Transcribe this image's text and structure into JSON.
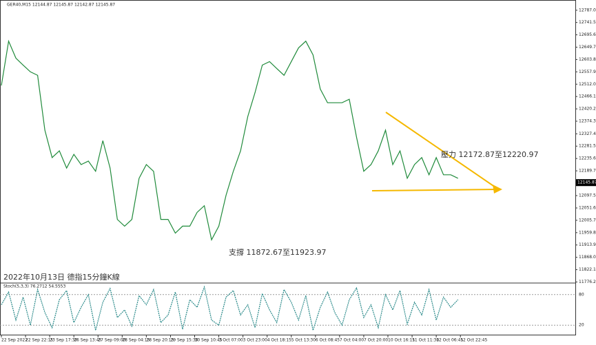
{
  "chart_data": {
    "type": "line",
    "title": "GER40,M15 12144.87 12145.87 12142.87 12145.87",
    "x": [
      0,
      3,
      6,
      9,
      12,
      15,
      18,
      21,
      24,
      27,
      30,
      33,
      36,
      39,
      42,
      45,
      48,
      51,
      54,
      57,
      60,
      63,
      66,
      69,
      72,
      75,
      78,
      81,
      84,
      87,
      90,
      93,
      96,
      99,
      102,
      105,
      108,
      111,
      114,
      117,
      120,
      123,
      126,
      129,
      132,
      135,
      138,
      141,
      144,
      147,
      150,
      153,
      156,
      159,
      162,
      165,
      168,
      171,
      174,
      177,
      180,
      183,
      186,
      189
    ],
    "values": [
      12507,
      12672,
      12609,
      12583,
      12558,
      12545,
      12341,
      12239,
      12264,
      12200,
      12251,
      12213,
      12226,
      12188,
      12302,
      12200,
      12009,
      11984,
      12009,
      12162,
      12213,
      12188,
      12009,
      12009,
      11958,
      11984,
      11984,
      12035,
      12060,
      11933,
      11984,
      12099,
      12188,
      12264,
      12392,
      12481,
      12583,
      12596,
      12570,
      12545,
      12596,
      12647,
      12672,
      12621,
      12494,
      12443,
      12443,
      12443,
      12456,
      12315,
      12188,
      12213,
      12264,
      12341,
      12213,
      12264,
      12162,
      12213,
      12239,
      12175,
      12239,
      12175,
      12175,
      12162
    ],
    "color": "#1f8a3a",
    "xlim": [
      0,
      237
    ],
    "xticks": [
      {
        "value": 0,
        "label": "22 Sep 2022"
      },
      {
        "value": 10,
        "label": "22 Sep 22:15"
      },
      {
        "value": 20,
        "label": "23 Sep 17:30"
      },
      {
        "value": 30,
        "label": "26 Sep 13:45"
      },
      {
        "value": 40,
        "label": "27 Sep 09:00"
      },
      {
        "value": 50,
        "label": "28 Sep 04:15"
      },
      {
        "value": 60,
        "label": "28 Sep 20:15"
      },
      {
        "value": 70,
        "label": "29 Sep 15:30"
      },
      {
        "value": 80,
        "label": "30 Sep 10:45"
      },
      {
        "value": 90,
        "label": "3 Oct 07:00"
      },
      {
        "value": 100,
        "label": "3 Oct 23:00"
      },
      {
        "value": 110,
        "label": "4 Oct 18:15"
      },
      {
        "value": 120,
        "label": "5 Oct 13:30"
      },
      {
        "value": 130,
        "label": "6 Oct 08:45"
      },
      {
        "value": 140,
        "label": "7 Oct 04:00"
      },
      {
        "value": 150,
        "label": "7 Oct 20:00"
      },
      {
        "value": 160,
        "label": "10 Oct 16:15"
      },
      {
        "value": 170,
        "label": "11 Oct 11:30"
      },
      {
        "value": 180,
        "label": "12 Oct 06:45"
      },
      {
        "value": 190,
        "label": "12 Oct 22:45"
      }
    ],
    "ylim": [
      11775,
      12820
    ],
    "yticks": [
      {
        "value": 12787,
        "label": "12787.00"
      },
      {
        "value": 12741.5,
        "label": "12741.50"
      },
      {
        "value": 12695.6,
        "label": "12695.60"
      },
      {
        "value": 12649.7,
        "label": "12649.70"
      },
      {
        "value": 12603.8,
        "label": "12603.80"
      },
      {
        "value": 12557.9,
        "label": "12557.90"
      },
      {
        "value": 12512,
        "label": "12512.00"
      },
      {
        "value": 12466.1,
        "label": "12466.10"
      },
      {
        "value": 12420.2,
        "label": "12420.20"
      },
      {
        "value": 12374.3,
        "label": "12374.30"
      },
      {
        "value": 12327.4,
        "label": "12327.40"
      },
      {
        "value": 12281.5,
        "label": "12281.50"
      },
      {
        "value": 12235.6,
        "label": "12235.60"
      },
      {
        "value": 12189.7,
        "label": "12189.70"
      },
      {
        "value": 12097.55,
        "label": "12097.55"
      },
      {
        "value": 12051.65,
        "label": "12051.65"
      },
      {
        "value": 12005.75,
        "label": "12005.75"
      },
      {
        "value": 11959.85,
        "label": "11959.85"
      },
      {
        "value": 11913.95,
        "label": "11913.95"
      },
      {
        "value": 11868.05,
        "label": "11868.05"
      },
      {
        "value": 11822.15,
        "label": "11822.15"
      },
      {
        "value": 11776.25,
        "label": "11776.25"
      }
    ],
    "last_price": 12145.87,
    "annotations": [
      "壓力 12172.87至12220.97",
      "支撐 11872.67至11923.97",
      "2022年10月13日 德指15分鐘K線"
    ],
    "indicator": {
      "type": "line",
      "title": "Stoch(5,3,3) 76.2712 54.5553",
      "values": [
        60,
        85,
        30,
        75,
        20,
        90,
        45,
        15,
        70,
        88,
        25,
        55,
        80,
        10,
        65,
        92,
        35,
        50,
        18,
        78,
        60,
        90,
        25,
        40,
        85,
        12,
        70,
        55,
        95,
        30,
        20,
        75,
        88,
        40,
        60,
        15,
        82,
        50,
        25,
        90,
        65,
        30,
        78,
        10,
        55,
        85,
        45,
        20,
        70,
        93,
        35,
        60,
        15,
        80,
        50,
        88,
        22,
        65,
        40,
        90,
        30,
        75,
        55,
        70
      ],
      "color": "#2a8a8a",
      "ylim": [
        0,
        100
      ],
      "yticks": [
        80,
        20
      ]
    }
  }
}
